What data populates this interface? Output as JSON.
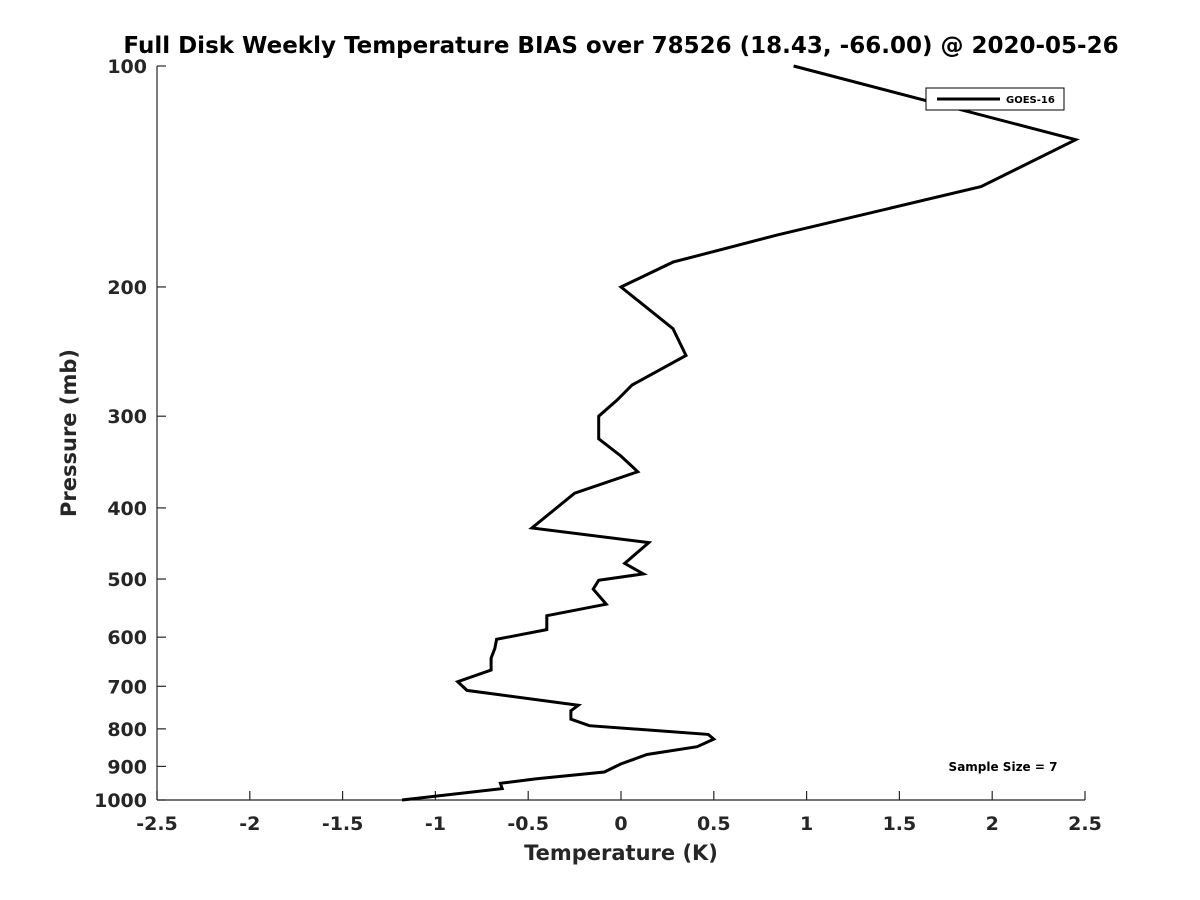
{
  "chart_data": {
    "type": "line",
    "title": "Full Disk Weekly Temperature BIAS over 78526 (18.43, -66.00) @ 2020-05-26",
    "xlabel": "Temperature (K)",
    "ylabel": "Pressure (mb)",
    "xlim": [
      -2.5,
      2.5
    ],
    "ylim": [
      100,
      1000
    ],
    "y_scale": "log",
    "y_reversed": true,
    "grid": false,
    "legend_position": "top-right",
    "xticks": [
      -2.5,
      -2,
      -1.5,
      -1,
      -0.5,
      0,
      0.5,
      1,
      1.5,
      2,
      2.5
    ],
    "xtick_labels": [
      "-2.5",
      "-2",
      "-1.5",
      "-1",
      "-0.5",
      "0",
      "0.5",
      "1",
      "1.5",
      "2",
      "2.5"
    ],
    "yticks": [
      100,
      200,
      300,
      400,
      500,
      600,
      700,
      800,
      900,
      1000
    ],
    "ytick_labels": [
      "100",
      "200",
      "300",
      "400",
      "500",
      "600",
      "700",
      "800",
      "900",
      "1000"
    ],
    "annotation": "Sample Size = 7",
    "series": [
      {
        "name": "GOES-16",
        "color": "#000000",
        "x": [
          0.93,
          2.45,
          1.94,
          0.84,
          0.28,
          0.0,
          0.28,
          0.35,
          0.06,
          -0.02,
          -0.12,
          -0.12,
          0.0,
          0.09,
          -0.25,
          -0.48,
          0.15,
          0.02,
          0.12,
          -0.12,
          -0.15,
          -0.08,
          -0.4,
          -0.4,
          -0.67,
          -0.68,
          -0.7,
          -0.7,
          -0.88,
          -0.83,
          -0.23,
          -0.27,
          -0.27,
          -0.17,
          0.47,
          0.5,
          0.41,
          0.14,
          0.0,
          -0.09,
          -0.46,
          -0.65,
          -0.64,
          -1.18
        ],
        "y": [
          100,
          126,
          146,
          170,
          185,
          200,
          228,
          248,
          272,
          285,
          300,
          322,
          340,
          357,
          382,
          426,
          446,
          476,
          492,
          502,
          516,
          541,
          561,
          586,
          604,
          622,
          641,
          665,
          690,
          709,
          743,
          756,
          776,
          792,
          814,
          826,
          846,
          867,
          893,
          916,
          936,
          949,
          965,
          1000
        ]
      }
    ]
  }
}
